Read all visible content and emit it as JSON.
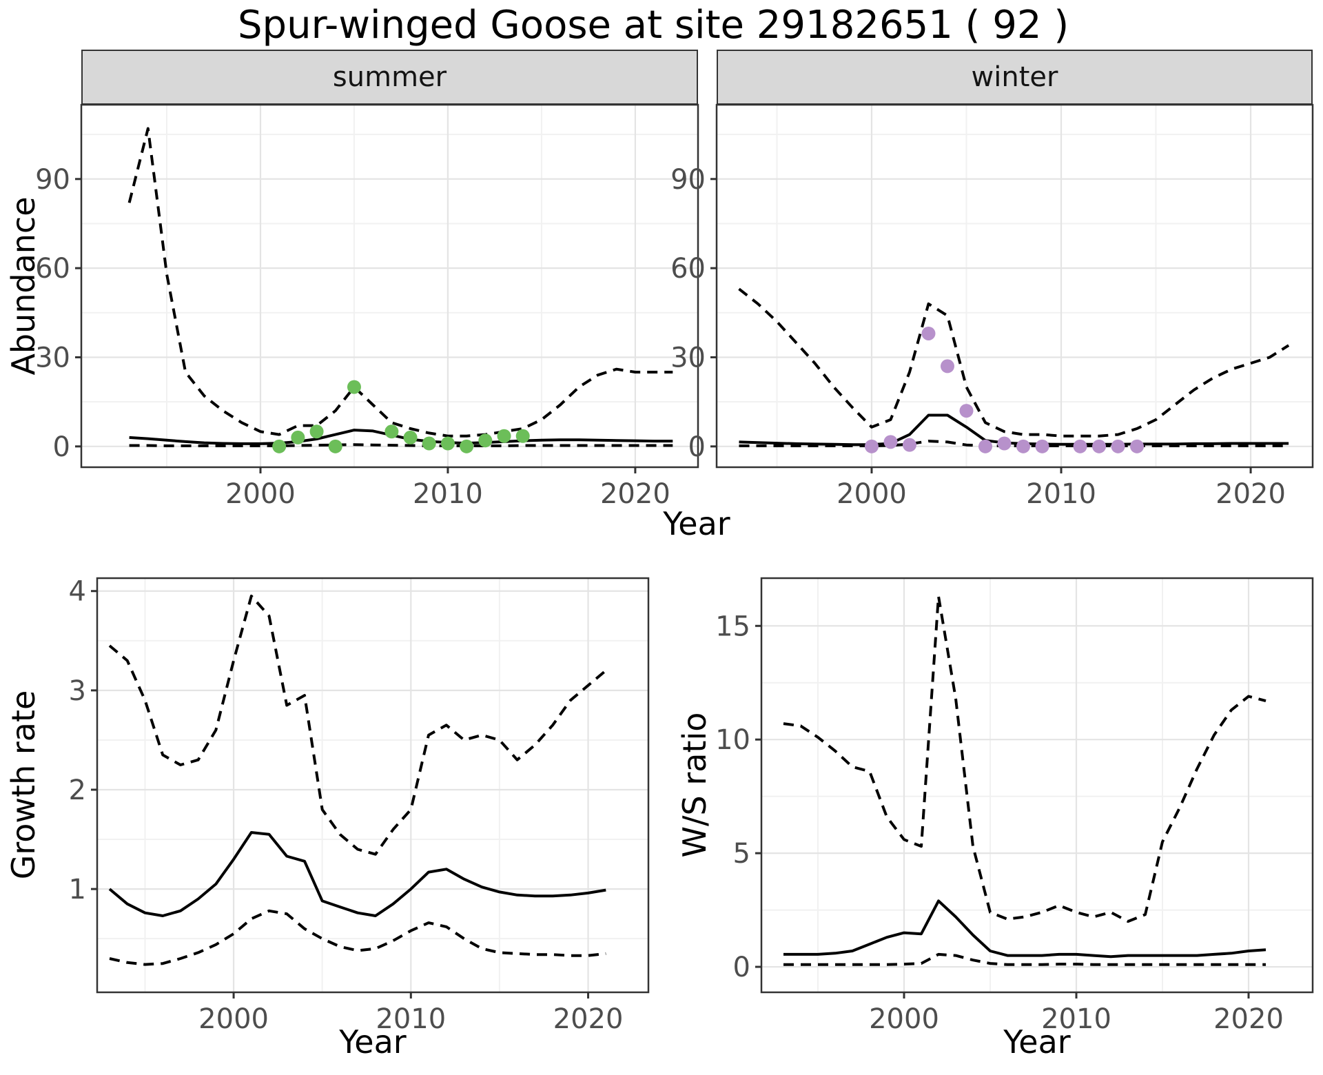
{
  "title": "Spur-winged Goose at site 29182651 ( 92 )",
  "axis_labels": {
    "year": "Year",
    "abundance": "Abundance",
    "growth_rate": "Growth rate",
    "ws_ratio": "W/S ratio"
  },
  "colors": {
    "summer_points": "#6CBE59",
    "winter_points": "#B791CB",
    "line": "#000000",
    "panel_border": "#333333",
    "grid_major": "#E4E4E4",
    "grid_minor": "#F1F1F1",
    "tick_text": "#4D4D4D",
    "strip_bg": "#D8D8D8"
  },
  "chart_data": [
    {
      "name": "abundance-summer",
      "type": "line",
      "facet": "summer",
      "xlabel": "Year",
      "ylabel": "Abundance",
      "xlim": [
        1990.44,
        2023.35
      ],
      "ylim": [
        -7,
        115
      ],
      "xticks": [
        2000,
        2010,
        2020
      ],
      "xminor": [
        1995,
        2005,
        2015
      ],
      "yticks": [
        0,
        30,
        60,
        90
      ],
      "yminor": [
        15,
        45,
        75,
        105
      ],
      "series": [
        {
          "name": "upper-ci",
          "style": "dashed",
          "x": [
            1993,
            1994,
            1995,
            1996,
            1997,
            1998,
            1999,
            2000,
            2001,
            2002,
            2003,
            2004,
            2005,
            2006,
            2007,
            2008,
            2009,
            2010,
            2011,
            2012,
            2013,
            2014,
            2015,
            2016,
            2017,
            2018,
            2019,
            2020,
            2021,
            2022
          ],
          "y": [
            82,
            107,
            58,
            25,
            17,
            12,
            8,
            5,
            4,
            7,
            7,
            12,
            20,
            14,
            8,
            6,
            4.5,
            3.5,
            3.5,
            4,
            5,
            6,
            9,
            14,
            20,
            24,
            26,
            25,
            25,
            25
          ]
        },
        {
          "name": "median",
          "style": "solid",
          "x": [
            1993,
            1994,
            1995,
            1996,
            1997,
            1998,
            1999,
            2000,
            2001,
            2002,
            2003,
            2004,
            2005,
            2006,
            2007,
            2008,
            2009,
            2010,
            2011,
            2012,
            2013,
            2014,
            2015,
            2016,
            2017,
            2018,
            2019,
            2020,
            2021,
            2022
          ],
          "y": [
            3,
            2.6,
            2.1,
            1.6,
            1.2,
            1,
            0.9,
            0.9,
            1.1,
            1.6,
            2.5,
            4,
            5.5,
            5.2,
            3.8,
            2.4,
            1.7,
            1.3,
            1.1,
            1.3,
            1.6,
            1.9,
            2.1,
            2.2,
            2.2,
            2.1,
            2,
            1.9,
            1.8,
            1.8
          ]
        },
        {
          "name": "lower-ci",
          "style": "dashed",
          "x": [
            1993,
            1994,
            1995,
            1996,
            1997,
            1998,
            1999,
            2000,
            2001,
            2002,
            2003,
            2004,
            2005,
            2006,
            2007,
            2008,
            2009,
            2010,
            2011,
            2012,
            2013,
            2014,
            2015,
            2016,
            2017,
            2018,
            2019,
            2020,
            2021,
            2022
          ],
          "y": [
            0.3,
            0.3,
            0.2,
            0.2,
            0.2,
            0.2,
            0.2,
            0.2,
            0.2,
            0.3,
            0.4,
            0.5,
            0.6,
            0.5,
            0.4,
            0.3,
            0.2,
            0.2,
            0.2,
            0.2,
            0.2,
            0.3,
            0.3,
            0.3,
            0.3,
            0.3,
            0.3,
            0.3,
            0.3,
            0.3
          ]
        }
      ],
      "points": {
        "name": "observed-counts-summer",
        "color": "#6CBE59",
        "x": [
          2001,
          2002,
          2003,
          2004,
          2005,
          2007,
          2008,
          2009,
          2010,
          2011,
          2012,
          2013,
          2014
        ],
        "y": [
          0,
          3,
          5,
          0,
          20,
          5,
          3,
          1,
          1,
          0,
          2,
          3.5,
          3.5
        ]
      }
    },
    {
      "name": "abundance-winter",
      "type": "line",
      "facet": "winter",
      "xlabel": "Year",
      "ylabel": "Abundance",
      "xlim": [
        1991.82,
        2023.27
      ],
      "ylim": [
        -7,
        115
      ],
      "xticks": [
        2000,
        2010,
        2020
      ],
      "xminor": [
        1995,
        2005,
        2015
      ],
      "yticks": [
        0,
        30,
        60,
        90
      ],
      "yminor": [
        15,
        45,
        75,
        105
      ],
      "series": [
        {
          "name": "upper-ci",
          "style": "dashed",
          "x": [
            1993,
            1994,
            1995,
            1996,
            1997,
            1998,
            1999,
            2000,
            2001,
            2002,
            2003,
            2004,
            2005,
            2006,
            2007,
            2008,
            2009,
            2010,
            2011,
            2012,
            2013,
            2014,
            2015,
            2016,
            2017,
            2018,
            2019,
            2020,
            2021,
            2022
          ],
          "y": [
            53,
            48,
            42,
            35,
            28,
            20,
            13,
            6.5,
            9,
            25,
            48,
            44,
            20,
            8,
            5,
            4,
            4,
            3.5,
            3.5,
            3.5,
            4,
            6,
            9,
            14,
            19,
            23,
            26,
            28,
            30,
            34
          ]
        },
        {
          "name": "median",
          "style": "solid",
          "x": [
            1993,
            1994,
            1995,
            1996,
            1997,
            1998,
            1999,
            2000,
            2001,
            2002,
            2003,
            2004,
            2005,
            2006,
            2007,
            2008,
            2009,
            2010,
            2011,
            2012,
            2013,
            2014,
            2015,
            2016,
            2017,
            2018,
            2019,
            2020,
            2021,
            2022
          ],
          "y": [
            1.5,
            1.3,
            1.1,
            0.9,
            0.8,
            0.7,
            0.6,
            0.6,
            1,
            4,
            10.5,
            10.5,
            6.5,
            2,
            1.2,
            0.9,
            0.8,
            0.7,
            0.7,
            0.7,
            0.7,
            0.8,
            0.8,
            0.8,
            0.9,
            0.9,
            1,
            1,
            1,
            1
          ]
        },
        {
          "name": "lower-ci",
          "style": "dashed",
          "x": [
            1993,
            1994,
            1995,
            1996,
            1997,
            1998,
            1999,
            2000,
            2001,
            2002,
            2003,
            2004,
            2005,
            2006,
            2007,
            2008,
            2009,
            2010,
            2011,
            2012,
            2013,
            2014,
            2015,
            2016,
            2017,
            2018,
            2019,
            2020,
            2021,
            2022
          ],
          "y": [
            0.2,
            0.2,
            0.2,
            0.2,
            0.2,
            0.2,
            0.2,
            0.2,
            0.3,
            0.8,
            1.8,
            1.5,
            0.5,
            0.2,
            0.2,
            0.2,
            0.2,
            0.2,
            0.2,
            0.2,
            0.2,
            0.2,
            0.2,
            0.2,
            0.2,
            0.2,
            0.2,
            0.2,
            0.2,
            0.2
          ]
        }
      ],
      "points": {
        "name": "observed-counts-winter",
        "color": "#B791CB",
        "x": [
          2000,
          2001,
          2002,
          2003,
          2004,
          2005,
          2006,
          2007,
          2008,
          2009,
          2011,
          2012,
          2013,
          2014
        ],
        "y": [
          0,
          1.5,
          0.5,
          38,
          27,
          12,
          0,
          1,
          0,
          0,
          0,
          0,
          0,
          0
        ]
      }
    },
    {
      "name": "growth-rate",
      "type": "line",
      "facet": null,
      "xlabel": "Year",
      "ylabel": "Growth rate",
      "xlim": [
        1992.3,
        2023.4
      ],
      "ylim": [
        -0.04,
        4.13
      ],
      "xticks": [
        2000,
        2010,
        2020
      ],
      "xminor": [
        1995,
        2005,
        2015
      ],
      "yticks": [
        1,
        2,
        3,
        4
      ],
      "yminor": [
        0.5,
        1.5,
        2.5,
        3.5
      ],
      "series": [
        {
          "name": "upper-ci",
          "style": "dashed",
          "x": [
            1993,
            1994,
            1995,
            1996,
            1997,
            1998,
            1999,
            2000,
            2001,
            2002,
            2003,
            2004,
            2005,
            2006,
            2007,
            2008,
            2009,
            2010,
            2011,
            2012,
            2013,
            2014,
            2015,
            2016,
            2017,
            2018,
            2019,
            2020,
            2021
          ],
          "y": [
            3.45,
            3.3,
            2.9,
            2.35,
            2.25,
            2.3,
            2.6,
            3.3,
            3.95,
            3.75,
            2.85,
            2.95,
            1.8,
            1.55,
            1.4,
            1.35,
            1.6,
            1.8,
            2.55,
            2.65,
            2.5,
            2.55,
            2.5,
            2.3,
            2.45,
            2.65,
            2.9,
            3.05,
            3.2
          ]
        },
        {
          "name": "median",
          "style": "solid",
          "x": [
            1993,
            1994,
            1995,
            1996,
            1997,
            1998,
            1999,
            2000,
            2001,
            2002,
            2003,
            2004,
            2005,
            2006,
            2007,
            2008,
            2009,
            2010,
            2011,
            2012,
            2013,
            2014,
            2015,
            2016,
            2017,
            2018,
            2019,
            2020,
            2021
          ],
          "y": [
            1.0,
            0.85,
            0.76,
            0.73,
            0.78,
            0.9,
            1.05,
            1.3,
            1.57,
            1.55,
            1.33,
            1.28,
            0.88,
            0.82,
            0.76,
            0.73,
            0.85,
            1.0,
            1.17,
            1.2,
            1.1,
            1.02,
            0.97,
            0.94,
            0.93,
            0.93,
            0.94,
            0.96,
            0.99
          ]
        },
        {
          "name": "lower-ci",
          "style": "dashed",
          "x": [
            1993,
            1994,
            1995,
            1996,
            1997,
            1998,
            1999,
            2000,
            2001,
            2002,
            2003,
            2004,
            2005,
            2006,
            2007,
            2008,
            2009,
            2010,
            2011,
            2012,
            2013,
            2014,
            2015,
            2016,
            2017,
            2018,
            2019,
            2020,
            2021
          ],
          "y": [
            0.3,
            0.26,
            0.24,
            0.25,
            0.3,
            0.36,
            0.44,
            0.55,
            0.7,
            0.78,
            0.75,
            0.6,
            0.5,
            0.42,
            0.38,
            0.4,
            0.48,
            0.58,
            0.66,
            0.62,
            0.5,
            0.4,
            0.36,
            0.35,
            0.34,
            0.34,
            0.33,
            0.33,
            0.35
          ]
        }
      ],
      "points": null
    },
    {
      "name": "ws-ratio",
      "type": "line",
      "facet": null,
      "xlabel": "Year",
      "ylabel": "W/S ratio",
      "xlim": [
        1991.72,
        2023.72
      ],
      "ylim": [
        -1.12,
        17.1
      ],
      "xticks": [
        2000,
        2010,
        2020
      ],
      "xminor": [
        1995,
        2005,
        2015
      ],
      "yticks": [
        0,
        5,
        10,
        15
      ],
      "yminor": [
        2.5,
        7.5,
        12.5
      ],
      "series": [
        {
          "name": "upper-ci",
          "style": "dashed",
          "x": [
            1993,
            1994,
            1995,
            1996,
            1997,
            1998,
            1999,
            2000,
            2001,
            2002,
            2003,
            2004,
            2005,
            2006,
            2007,
            2008,
            2009,
            2010,
            2011,
            2012,
            2013,
            2014,
            2015,
            2016,
            2017,
            2018,
            2019,
            2020,
            2021
          ],
          "y": [
            10.7,
            10.6,
            10.1,
            9.5,
            8.8,
            8.6,
            6.6,
            5.6,
            5.3,
            16.3,
            11.8,
            5.3,
            2.4,
            2.1,
            2.2,
            2.4,
            2.7,
            2.4,
            2.2,
            2.4,
            2.0,
            2.3,
            5.5,
            7.0,
            8.7,
            10.2,
            11.3,
            11.9,
            11.7
          ]
        },
        {
          "name": "median",
          "style": "solid",
          "x": [
            1993,
            1994,
            1995,
            1996,
            1997,
            1998,
            1999,
            2000,
            2001,
            2002,
            2003,
            2004,
            2005,
            2006,
            2007,
            2008,
            2009,
            2010,
            2011,
            2012,
            2013,
            2014,
            2015,
            2016,
            2017,
            2018,
            2019,
            2020,
            2021
          ],
          "y": [
            0.55,
            0.55,
            0.55,
            0.6,
            0.7,
            1.0,
            1.3,
            1.5,
            1.45,
            2.9,
            2.2,
            1.4,
            0.7,
            0.5,
            0.5,
            0.5,
            0.55,
            0.55,
            0.5,
            0.45,
            0.5,
            0.5,
            0.5,
            0.5,
            0.5,
            0.55,
            0.6,
            0.7,
            0.75
          ]
        },
        {
          "name": "lower-ci",
          "style": "dashed",
          "x": [
            1993,
            1994,
            1995,
            1996,
            1997,
            1998,
            1999,
            2000,
            2001,
            2002,
            2003,
            2004,
            2005,
            2006,
            2007,
            2008,
            2009,
            2010,
            2011,
            2012,
            2013,
            2014,
            2015,
            2016,
            2017,
            2018,
            2019,
            2020,
            2021
          ],
          "y": [
            0.1,
            0.1,
            0.1,
            0.1,
            0.1,
            0.1,
            0.1,
            0.12,
            0.15,
            0.55,
            0.5,
            0.3,
            0.15,
            0.1,
            0.1,
            0.1,
            0.12,
            0.12,
            0.1,
            0.1,
            0.1,
            0.1,
            0.1,
            0.1,
            0.1,
            0.1,
            0.1,
            0.1,
            0.1
          ]
        }
      ],
      "points": null
    }
  ]
}
